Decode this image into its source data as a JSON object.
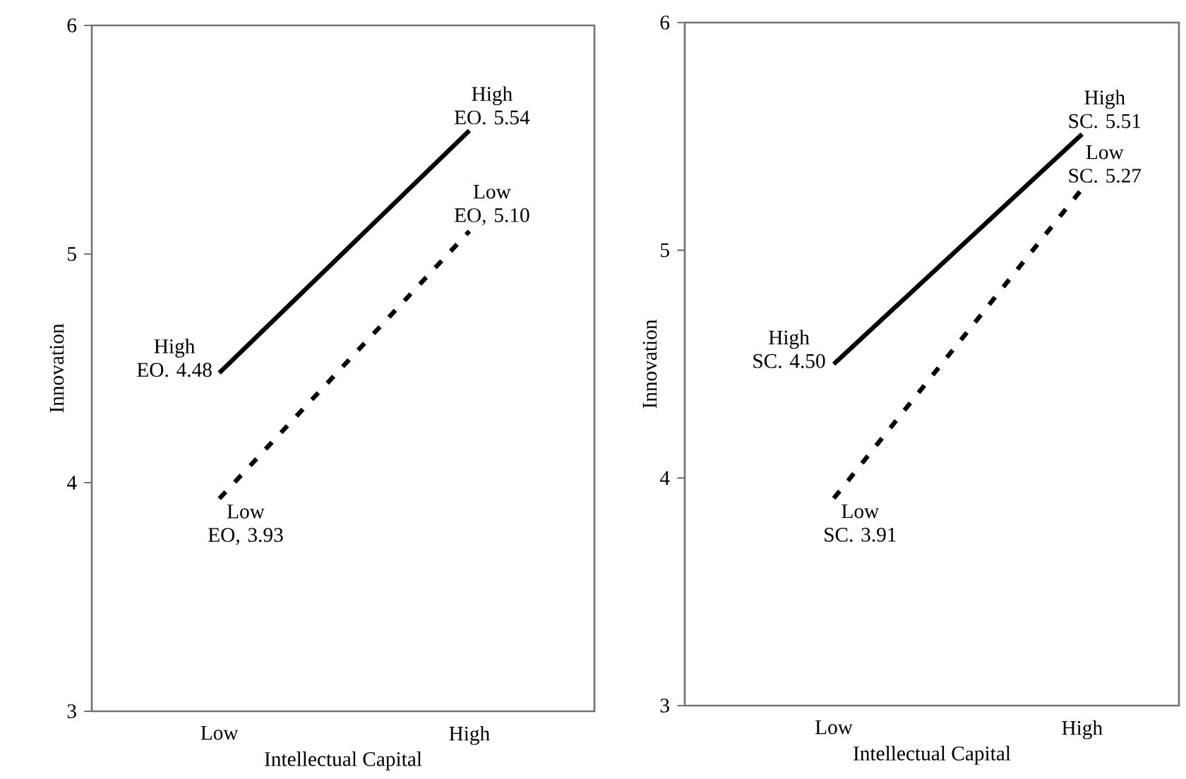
{
  "chart_data": [
    {
      "type": "line",
      "categories": [
        "Low",
        "High"
      ],
      "xlabel": "Intellectual Capital",
      "ylabel": "Innovation",
      "ylim": [
        3,
        6
      ],
      "yticks": [
        3,
        4,
        5,
        6
      ],
      "grid": false,
      "legend": false,
      "marker": "none",
      "series": [
        {
          "color": "#000000",
          "line_style": "solid",
          "values": [
            4.48,
            5.54
          ]
        },
        {
          "color": "#000000",
          "line_style": "dashed",
          "values": [
            3.93,
            5.1
          ]
        }
      ],
      "annotations": [
        {
          "text": "High EO. 4.48",
          "x": "Low",
          "y": 4.48
        },
        {
          "text": "High EO. 5.54",
          "x": "High",
          "y": 5.54
        },
        {
          "text": "Low EO, 3.93",
          "x": "Low",
          "y": 3.93
        },
        {
          "text": "Low EO, 5.10",
          "x": "High",
          "y": 5.1
        }
      ]
    },
    {
      "type": "line",
      "categories": [
        "Low",
        "High"
      ],
      "xlabel": "Intellectual Capital",
      "ylabel": "Innovation",
      "ylim": [
        3,
        6
      ],
      "yticks": [
        3,
        4,
        5,
        6
      ],
      "grid": false,
      "legend": false,
      "marker": "none",
      "series": [
        {
          "color": "#000000",
          "line_style": "solid",
          "values": [
            4.5,
            5.51
          ]
        },
        {
          "color": "#000000",
          "line_style": "dashed",
          "values": [
            3.91,
            5.27
          ]
        }
      ],
      "annotations": [
        {
          "text": "High SC. 4.50",
          "x": "Low",
          "y": 4.5
        },
        {
          "text": "High SC. 5.51",
          "x": "High",
          "y": 5.51
        },
        {
          "text": "Low SC. 3.91",
          "x": "Low",
          "y": 3.91
        },
        {
          "text": "Low SC. 5.27",
          "x": "High",
          "y": 5.27
        }
      ]
    }
  ]
}
